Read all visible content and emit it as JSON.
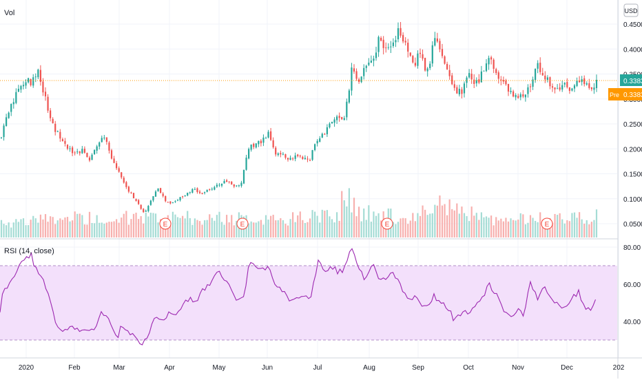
{
  "main_panel": {
    "volume_label": "Vol",
    "currency_badge": "USD",
    "last_price_label": "0.3383",
    "premarket_tag": "Pre",
    "premarket_price_label": "0.3383",
    "y_ticks": [
      "0.4500",
      "0.4000",
      "0.3500",
      "0.3000",
      "0.2500",
      "0.2000",
      "0.1500",
      "0.1000",
      "0.0500"
    ],
    "earnings_markers": [
      "E",
      "E",
      "E",
      "E"
    ]
  },
  "rsi_panel": {
    "title": "RSI (14, close)",
    "y_ticks": [
      "80.00",
      "60.00",
      "40.00"
    ]
  },
  "x_axis": {
    "labels": [
      "2020",
      "Feb",
      "Mar",
      "Apr",
      "May",
      "Jun",
      "Jul",
      "Aug",
      "Sep",
      "Oct",
      "Nov",
      "Dec",
      "202"
    ]
  },
  "colors": {
    "up": "#26a69a",
    "down": "#ef5350",
    "rsi_line": "#9c27b0",
    "rsi_band": "#f3e0fb",
    "last_price": "#26a69a",
    "premarket": "#ff9800"
  },
  "chart_data": [
    {
      "type": "candlestick",
      "price_axis": [
        0.03,
        0.46
      ],
      "last_close": 0.3383,
      "close_anchors": [
        [
          0,
          0.21
        ],
        [
          8,
          0.26
        ],
        [
          20,
          0.3
        ],
        [
          30,
          0.33
        ],
        [
          38,
          0.34
        ],
        [
          45,
          0.33
        ],
        [
          55,
          0.36
        ],
        [
          60,
          0.33
        ],
        [
          70,
          0.28
        ],
        [
          80,
          0.24
        ],
        [
          90,
          0.22
        ],
        [
          100,
          0.2
        ],
        [
          110,
          0.19
        ],
        [
          120,
          0.2
        ],
        [
          130,
          0.18
        ],
        [
          140,
          0.205
        ],
        [
          150,
          0.23
        ],
        [
          160,
          0.19
        ],
        [
          170,
          0.16
        ],
        [
          180,
          0.13
        ],
        [
          190,
          0.11
        ],
        [
          200,
          0.09
        ],
        [
          210,
          0.07
        ],
        [
          220,
          0.1
        ],
        [
          230,
          0.12
        ],
        [
          240,
          0.095
        ],
        [
          250,
          0.09
        ],
        [
          260,
          0.1
        ],
        [
          270,
          0.11
        ],
        [
          280,
          0.12
        ],
        [
          290,
          0.11
        ],
        [
          300,
          0.115
        ],
        [
          310,
          0.125
        ],
        [
          320,
          0.13
        ],
        [
          330,
          0.135
        ],
        [
          340,
          0.125
        ],
        [
          350,
          0.13
        ],
        [
          360,
          0.2
        ],
        [
          370,
          0.21
        ],
        [
          380,
          0.215
        ],
        [
          390,
          0.23
        ],
        [
          400,
          0.19
        ],
        [
          410,
          0.19
        ],
        [
          420,
          0.18
        ],
        [
          430,
          0.185
        ],
        [
          440,
          0.18
        ],
        [
          450,
          0.18
        ],
        [
          460,
          0.22
        ],
        [
          470,
          0.23
        ],
        [
          480,
          0.25
        ],
        [
          490,
          0.26
        ],
        [
          500,
          0.265
        ],
        [
          505,
          0.3
        ],
        [
          510,
          0.36
        ],
        [
          520,
          0.33
        ],
        [
          530,
          0.36
        ],
        [
          540,
          0.37
        ],
        [
          550,
          0.42
        ],
        [
          560,
          0.4
        ],
        [
          570,
          0.41
        ],
        [
          578,
          0.44
        ],
        [
          590,
          0.4
        ],
        [
          600,
          0.37
        ],
        [
          610,
          0.39
        ],
        [
          620,
          0.35
        ],
        [
          630,
          0.42
        ],
        [
          640,
          0.4
        ],
        [
          650,
          0.36
        ],
        [
          660,
          0.32
        ],
        [
          670,
          0.31
        ],
        [
          680,
          0.35
        ],
        [
          690,
          0.33
        ],
        [
          700,
          0.35
        ],
        [
          710,
          0.38
        ],
        [
          720,
          0.35
        ],
        [
          730,
          0.33
        ],
        [
          740,
          0.32
        ],
        [
          750,
          0.3
        ],
        [
          760,
          0.31
        ],
        [
          770,
          0.33
        ],
        [
          780,
          0.37
        ],
        [
          790,
          0.35
        ],
        [
          800,
          0.33
        ],
        [
          810,
          0.32
        ],
        [
          820,
          0.33
        ],
        [
          830,
          0.32
        ],
        [
          840,
          0.34
        ],
        [
          850,
          0.33
        ],
        [
          860,
          0.32
        ],
        [
          866,
          0.338
        ]
      ],
      "volume_anchors": [
        [
          0,
          0.2
        ],
        [
          100,
          0.35
        ],
        [
          200,
          0.35
        ],
        [
          300,
          0.35
        ],
        [
          400,
          0.3
        ],
        [
          490,
          0.45
        ],
        [
          505,
          1.0
        ],
        [
          515,
          0.6
        ],
        [
          520,
          0.55
        ],
        [
          560,
          0.4
        ],
        [
          600,
          0.35
        ],
        [
          630,
          0.55
        ],
        [
          640,
          0.7
        ],
        [
          700,
          0.35
        ],
        [
          720,
          0.3
        ],
        [
          800,
          0.35
        ],
        [
          866,
          0.4
        ]
      ]
    },
    {
      "type": "line",
      "name": "RSI (14, close)",
      "y_range": [
        22,
        83
      ],
      "overbought": 70,
      "oversold": 30,
      "anchors": [
        [
          0,
          44
        ],
        [
          5,
          58
        ],
        [
          15,
          60
        ],
        [
          25,
          68
        ],
        [
          35,
          73
        ],
        [
          45,
          76
        ],
        [
          50,
          70
        ],
        [
          60,
          65
        ],
        [
          70,
          55
        ],
        [
          80,
          40
        ],
        [
          90,
          35
        ],
        [
          100,
          37
        ],
        [
          110,
          35
        ],
        [
          120,
          36
        ],
        [
          130,
          35
        ],
        [
          140,
          37
        ],
        [
          148,
          45
        ],
        [
          155,
          42
        ],
        [
          165,
          35
        ],
        [
          170,
          30
        ],
        [
          175,
          37
        ],
        [
          185,
          35
        ],
        [
          195,
          32
        ],
        [
          205,
          27
        ],
        [
          215,
          33
        ],
        [
          225,
          44
        ],
        [
          235,
          40
        ],
        [
          245,
          45
        ],
        [
          255,
          42
        ],
        [
          265,
          50
        ],
        [
          275,
          52
        ],
        [
          285,
          50
        ],
        [
          295,
          57
        ],
        [
          305,
          60
        ],
        [
          315,
          67
        ],
        [
          325,
          63
        ],
        [
          335,
          57
        ],
        [
          345,
          50
        ],
        [
          355,
          54
        ],
        [
          362,
          73
        ],
        [
          370,
          70
        ],
        [
          380,
          67
        ],
        [
          390,
          70
        ],
        [
          400,
          60
        ],
        [
          410,
          57
        ],
        [
          420,
          50
        ],
        [
          430,
          52
        ],
        [
          440,
          55
        ],
        [
          450,
          50
        ],
        [
          462,
          73
        ],
        [
          470,
          67
        ],
        [
          480,
          70
        ],
        [
          490,
          67
        ],
        [
          500,
          68
        ],
        [
          510,
          80
        ],
        [
          520,
          70
        ],
        [
          530,
          62
        ],
        [
          540,
          72
        ],
        [
          550,
          64
        ],
        [
          560,
          62
        ],
        [
          570,
          67
        ],
        [
          580,
          61
        ],
        [
          590,
          52
        ],
        [
          600,
          53
        ],
        [
          610,
          50
        ],
        [
          620,
          48
        ],
        [
          630,
          54
        ],
        [
          640,
          50
        ],
        [
          650,
          48
        ],
        [
          660,
          40
        ],
        [
          670,
          45
        ],
        [
          680,
          44
        ],
        [
          690,
          48
        ],
        [
          700,
          52
        ],
        [
          710,
          60
        ],
        [
          720,
          55
        ],
        [
          730,
          47
        ],
        [
          740,
          42
        ],
        [
          750,
          46
        ],
        [
          760,
          44
        ],
        [
          770,
          60
        ],
        [
          780,
          52
        ],
        [
          790,
          60
        ],
        [
          800,
          52
        ],
        [
          810,
          49
        ],
        [
          820,
          47
        ],
        [
          830,
          52
        ],
        [
          840,
          56
        ],
        [
          850,
          45
        ],
        [
          860,
          48
        ],
        [
          866,
          54
        ]
      ]
    }
  ]
}
